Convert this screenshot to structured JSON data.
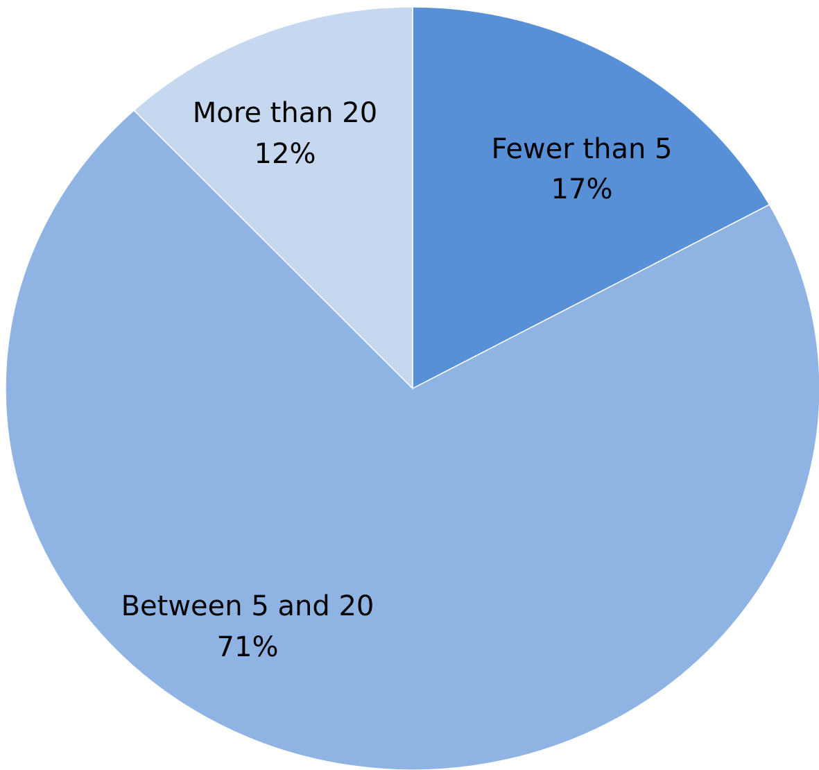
{
  "chart_data": {
    "type": "pie",
    "title": "",
    "start_angle_deg": 0,
    "direction": "clockwise",
    "legend": "none",
    "slices": [
      {
        "label": "Fewer than 5",
        "value": 17,
        "value_label": "17%",
        "color": "#5790D6"
      },
      {
        "label": "Between 5 and 20",
        "value": 71,
        "value_label": "71%",
        "color": "#8FB3E2"
      },
      {
        "label": "More than 20",
        "value": 12,
        "value_label": "12%",
        "color": "#C5D8F0"
      }
    ]
  }
}
